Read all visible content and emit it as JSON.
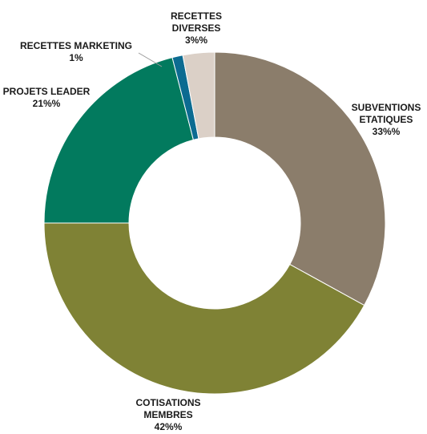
{
  "chart_data": {
    "type": "pie",
    "donut": true,
    "title": "",
    "slices": [
      {
        "key": "subventions",
        "label_lines": [
          "SUBVENTIONS",
          "ETATIQUES"
        ],
        "value_label": "33%%",
        "value": 33,
        "color": "#8b7d6b"
      },
      {
        "key": "cotisations",
        "label_lines": [
          "COTISATIONS",
          "MEMBRES"
        ],
        "value_label": "42%%",
        "value": 42,
        "color": "#7f8235"
      },
      {
        "key": "leader",
        "label_lines": [
          "PROJETS LEADER"
        ],
        "value_label": "21%%",
        "value": 21,
        "color": "#027a5e"
      },
      {
        "key": "marketing",
        "label_lines": [
          "RECETTES MARKETING"
        ],
        "value_label": "1%",
        "value": 1,
        "color": "#0c6b91"
      },
      {
        "key": "diverses",
        "label_lines": [
          "RECETTES",
          "DIVERSES"
        ],
        "value_label": "3%%",
        "value": 3,
        "color": "#dbd0c7"
      }
    ],
    "legend": "none"
  }
}
